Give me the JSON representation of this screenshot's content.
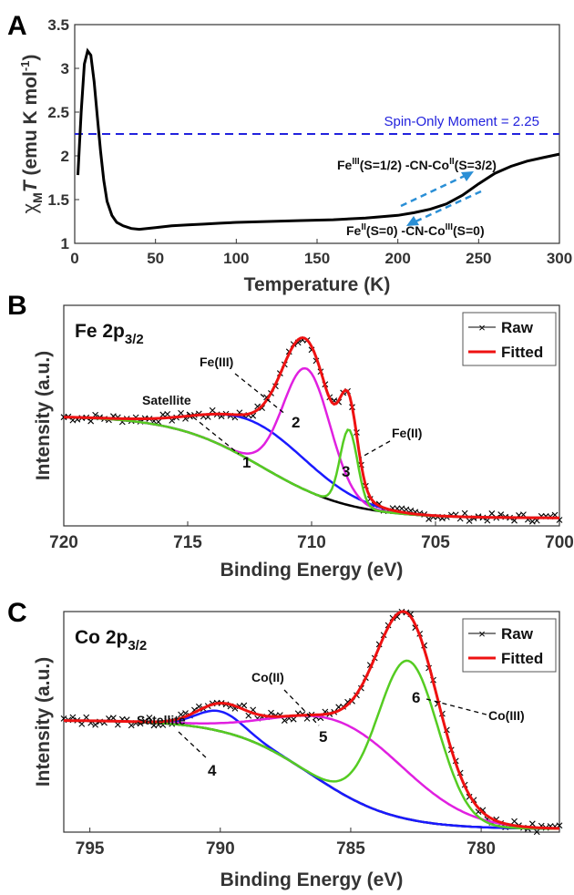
{
  "colors": {
    "black": "#000000",
    "blue": "#1a1aff",
    "magenta": "#e020e0",
    "green": "#55cc22",
    "red": "#ee1111",
    "dashed_line": "#2222dd",
    "arrow": "#2a8fd6"
  },
  "chart_data": [
    {
      "panel": "A",
      "type": "line",
      "xlabel": "Temperature (K)",
      "ylabel": {
        "chi": "χ",
        "sub": "M",
        "T": "T",
        "unit": " (emu K mol",
        "sup": "-1",
        "close": ")"
      },
      "xlim": [
        0,
        300
      ],
      "ylim": [
        1,
        3.5
      ],
      "xticks": [
        "0",
        "50",
        "100",
        "150",
        "200",
        "250",
        "300"
      ],
      "yticks": [
        "1",
        "1.5",
        "2",
        "2.5",
        "3",
        "3.5"
      ],
      "series": [
        {
          "x": [
            2,
            4,
            6,
            8,
            10,
            12,
            14,
            16,
            18,
            20,
            23,
            26,
            30,
            35,
            40,
            50,
            60,
            70,
            80,
            90,
            100,
            120,
            140,
            160,
            180,
            200,
            210,
            220,
            230,
            240,
            250,
            260,
            270,
            280,
            290,
            300
          ],
          "y": [
            1.78,
            2.5,
            3.05,
            3.2,
            3.15,
            2.85,
            2.45,
            2.05,
            1.72,
            1.48,
            1.32,
            1.24,
            1.2,
            1.17,
            1.16,
            1.18,
            1.2,
            1.21,
            1.22,
            1.23,
            1.24,
            1.25,
            1.26,
            1.27,
            1.29,
            1.32,
            1.35,
            1.39,
            1.45,
            1.55,
            1.68,
            1.8,
            1.88,
            1.94,
            1.98,
            2.02
          ]
        }
      ],
      "reference_line": {
        "y": 2.25,
        "label": "Spin-Only Moment = 2.25"
      },
      "annotations": {
        "upper": {
          "fe": "Fe",
          "fe_sup": "III",
          "fe_rest": "(S=1/2) -CN-Co",
          "co_sup": "II",
          "co_rest": "(S=3/2)"
        },
        "lower": {
          "fe": "Fe",
          "fe_sup": "II",
          "fe_rest": "(S=0) -CN-Co",
          "co_sup": "III",
          "co_rest": "(S=0)"
        }
      }
    },
    {
      "panel": "B",
      "type": "line",
      "title": {
        "main": "Fe 2p",
        "sub": "3/2"
      },
      "xlabel": "Binding Energy (eV)",
      "ylabel": "Intensity (a.u.)",
      "xlim": [
        720,
        700
      ],
      "xticks": [
        "720",
        "715",
        "710",
        "705",
        "700"
      ],
      "legend": [
        "Raw",
        "Fitted"
      ],
      "peaks": [
        {
          "num": "1",
          "label": "Satellite",
          "center": 712.0
        },
        {
          "num": "2",
          "label": "Fe(III)",
          "center": 710.2
        },
        {
          "num": "3",
          "label": "Fe(II)",
          "center": 708.5
        }
      ]
    },
    {
      "panel": "C",
      "type": "line",
      "title": {
        "main": "Co 2p",
        "sub": "3/2"
      },
      "xlabel": "Binding Energy (eV)",
      "ylabel": "Intensity (a.u.)",
      "xlim": [
        796,
        777
      ],
      "xticks": [
        "795",
        "790",
        "785",
        "780"
      ],
      "legend": [
        "Raw",
        "Fitted"
      ],
      "peaks": [
        {
          "num": "4",
          "label": "Satellite",
          "center": 790.0
        },
        {
          "num": "5",
          "label": "Co(II)",
          "center": 785.0
        },
        {
          "num": "6",
          "label": "Co(III)",
          "center": 782.8
        }
      ]
    }
  ]
}
